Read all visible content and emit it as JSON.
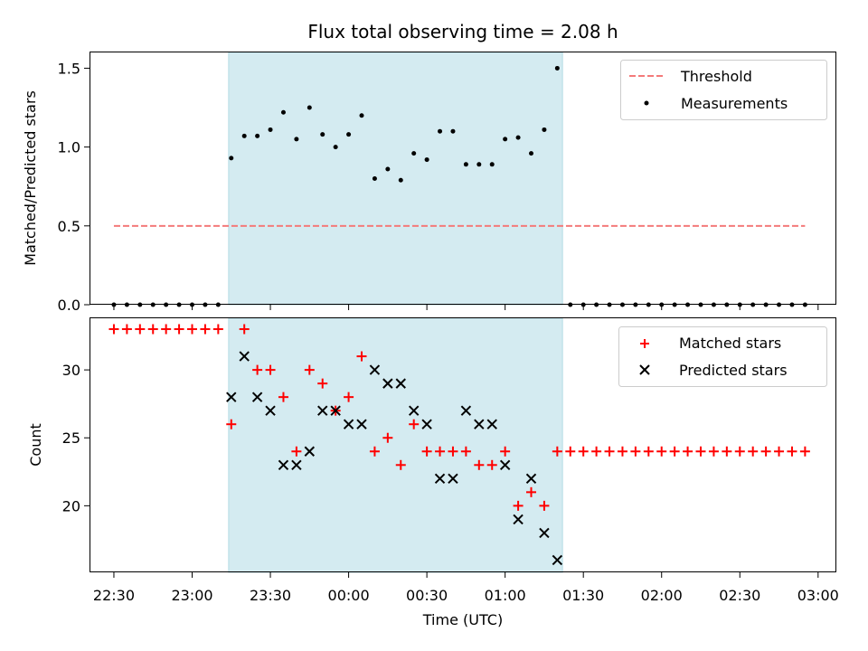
{
  "chart_data": [
    {
      "type": "scatter",
      "title": "Flux total observing time = 2.08 h",
      "xlabel": "",
      "ylabel": "Matched/Predicted stars",
      "ylim": [
        0,
        1.6
      ],
      "yticks": [
        0.0,
        0.5,
        1.0,
        1.5
      ],
      "ytick_labels": [
        "0.0",
        "0.5",
        "1.0",
        "1.5"
      ],
      "xlim": [
        "22:21",
        "03:07"
      ],
      "shaded_range": [
        "23:14",
        "01:22"
      ],
      "shade_color": "#d4ebf1",
      "legend_position": "upper right",
      "threshold": {
        "name": "Threshold",
        "y": 0.5,
        "x_range": [
          "22:30",
          "02:55"
        ],
        "color": "#f47a7a"
      },
      "series": [
        {
          "name": "Measurements",
          "color": "#000000",
          "marker": "dot",
          "x": [
            "22:30",
            "22:35",
            "22:40",
            "22:45",
            "22:50",
            "22:55",
            "23:00",
            "23:05",
            "23:10",
            "23:15",
            "23:20",
            "23:25",
            "23:30",
            "23:35",
            "23:40",
            "23:45",
            "23:50",
            "23:55",
            "00:00",
            "00:05",
            "00:10",
            "00:15",
            "00:20",
            "00:25",
            "00:30",
            "00:35",
            "00:40",
            "00:45",
            "00:50",
            "00:55",
            "01:00",
            "01:05",
            "01:10",
            "01:15",
            "01:20",
            "01:25",
            "01:30",
            "01:35",
            "01:40",
            "01:45",
            "01:50",
            "01:55",
            "02:00",
            "02:05",
            "02:10",
            "02:15",
            "02:20",
            "02:25",
            "02:30",
            "02:35",
            "02:40",
            "02:45",
            "02:50",
            "02:55"
          ],
          "y": [
            0,
            0,
            0,
            0,
            0,
            0,
            0,
            0,
            0,
            0.93,
            1.07,
            1.07,
            1.11,
            1.22,
            1.05,
            1.25,
            1.08,
            1.0,
            1.08,
            1.2,
            0.8,
            0.86,
            0.79,
            0.96,
            0.92,
            1.1,
            1.1,
            0.89,
            0.89,
            0.89,
            1.05,
            1.06,
            0.96,
            1.11,
            1.5,
            0,
            0,
            0,
            0,
            0,
            0,
            0,
            0,
            0,
            0,
            0,
            0,
            0,
            0,
            0,
            0,
            0,
            0,
            0
          ]
        }
      ]
    },
    {
      "type": "scatter",
      "title": "",
      "xlabel": "Time (UTC)",
      "ylabel": "Count",
      "ylim": [
        15.1,
        33.8
      ],
      "yticks": [
        20,
        25,
        30
      ],
      "ytick_labels": [
        "20",
        "25",
        "30"
      ],
      "xlim": [
        "22:21",
        "03:07"
      ],
      "xticks": [
        "22:30",
        "23:00",
        "23:30",
        "00:00",
        "00:30",
        "01:00",
        "01:30",
        "02:00",
        "02:30",
        "03:00"
      ],
      "xtick_labels": [
        "22:30",
        "23:00",
        "23:30",
        "00:00",
        "00:30",
        "01:00",
        "01:30",
        "02:00",
        "02:30",
        "03:00"
      ],
      "shaded_range": [
        "23:14",
        "01:22"
      ],
      "legend_position": "upper right",
      "series": [
        {
          "name": "Matched stars",
          "color": "#ff0000",
          "marker": "plus",
          "x": [
            "22:30",
            "22:35",
            "22:40",
            "22:45",
            "22:50",
            "22:55",
            "23:00",
            "23:05",
            "23:10",
            "23:15",
            "23:20",
            "23:25",
            "23:30",
            "23:35",
            "23:40",
            "23:45",
            "23:50",
            "23:55",
            "00:00",
            "00:05",
            "00:10",
            "00:15",
            "00:20",
            "00:25",
            "00:30",
            "00:35",
            "00:40",
            "00:45",
            "00:50",
            "00:55",
            "01:00",
            "01:05",
            "01:10",
            "01:15",
            "01:20",
            "01:25",
            "01:30",
            "01:35",
            "01:40",
            "01:45",
            "01:50",
            "01:55",
            "02:00",
            "02:05",
            "02:10",
            "02:15",
            "02:20",
            "02:25",
            "02:30",
            "02:35",
            "02:40",
            "02:45",
            "02:50",
            "02:55"
          ],
          "y": [
            33,
            33,
            33,
            33,
            33,
            33,
            33,
            33,
            33,
            26,
            33,
            30,
            30,
            28,
            24,
            30,
            29,
            27,
            28,
            31,
            24,
            25,
            23,
            26,
            24,
            24,
            24,
            24,
            23,
            23,
            24,
            20,
            21,
            20,
            24,
            24,
            24,
            24,
            24,
            24,
            24,
            24,
            24,
            24,
            24,
            24,
            24,
            24,
            24,
            24,
            24,
            24,
            24,
            24
          ]
        },
        {
          "name": "Predicted stars",
          "color": "#000000",
          "marker": "x",
          "x": [
            "23:15",
            "23:20",
            "23:25",
            "23:30",
            "23:35",
            "23:40",
            "23:45",
            "23:50",
            "23:55",
            "00:00",
            "00:05",
            "00:10",
            "00:15",
            "00:20",
            "00:25",
            "00:30",
            "00:35",
            "00:40",
            "00:45",
            "00:50",
            "00:55",
            "01:00",
            "01:05",
            "01:10",
            "01:15",
            "01:20"
          ],
          "y": [
            28,
            31,
            28,
            27,
            23,
            23,
            24,
            27,
            27,
            26,
            26,
            30,
            29,
            29,
            27,
            26,
            22,
            22,
            27,
            26,
            26,
            23,
            19,
            22,
            18,
            16
          ]
        }
      ]
    }
  ]
}
